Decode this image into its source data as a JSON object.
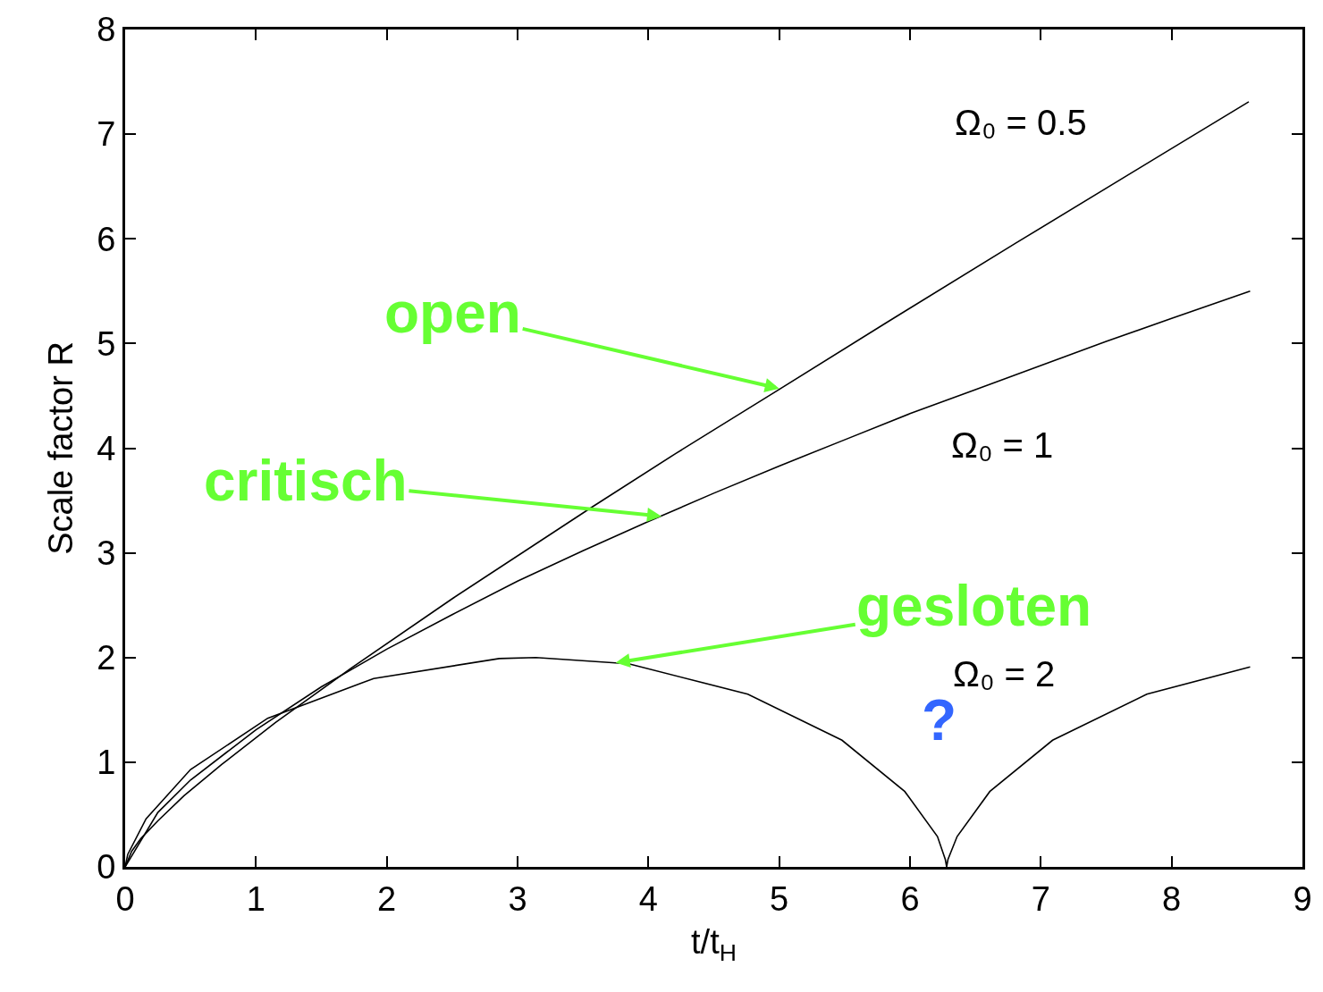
{
  "chart_data": {
    "type": "line",
    "xlabel": "t/t$_{H}$",
    "ylabel": "Scale factor R",
    "xlim": [
      0,
      9
    ],
    "ylim": [
      0,
      8
    ],
    "xticks": [
      0,
      1,
      2,
      3,
      4,
      5,
      6,
      7,
      8,
      9
    ],
    "yticks": [
      0,
      1,
      2,
      3,
      4,
      5,
      6,
      7,
      8
    ],
    "legend": false,
    "marker": "none",
    "line_style": "solid",
    "series": [
      {
        "name": "Ω₀ = 0.5",
        "color": "#000000",
        "x": [
          0,
          0.05,
          0.12,
          0.25,
          0.45,
          0.74,
          1.15,
          1.73,
          2.51,
          3.56,
          4.21,
          4.96,
          5.82,
          6.81,
          7.93,
          8.59
        ],
        "values": [
          0,
          0.15,
          0.27,
          0.44,
          0.68,
          0.98,
          1.38,
          1.9,
          2.57,
          3.43,
          3.95,
          4.53,
          5.2,
          5.96,
          6.81,
          7.31
        ]
      },
      {
        "name": "Ω₀ = 1",
        "color": "#000000",
        "x": [
          0,
          0.25,
          0.5,
          1,
          1.5,
          2,
          2.5,
          3,
          3.5,
          4,
          4.5,
          5,
          5.5,
          6,
          6.5,
          7,
          7.5,
          8,
          8.6
        ],
        "values": [
          0,
          0.52,
          0.83,
          1.31,
          1.72,
          2.08,
          2.41,
          2.73,
          3.02,
          3.3,
          3.57,
          3.83,
          4.08,
          4.33,
          4.56,
          4.79,
          5.02,
          5.24,
          5.5
        ]
      },
      {
        "name": "Ω₀ = 2",
        "color": "#000000",
        "x": [
          0,
          0.02,
          0.16,
          0.5,
          1.09,
          1.9,
          2.86,
          3.14,
          3.85,
          4.76,
          5.48,
          5.96,
          6.21,
          6.27,
          6.28,
          6.29,
          6.36,
          6.61,
          7.09,
          7.81,
          8.6
        ],
        "values": [
          0,
          0.12,
          0.46,
          0.93,
          1.42,
          1.8,
          1.99,
          2,
          1.94,
          1.65,
          1.21,
          0.72,
          0.29,
          0.07,
          0,
          0.07,
          0.29,
          0.72,
          1.21,
          1.65,
          1.91
        ]
      }
    ],
    "annotations": [
      {
        "text": "open",
        "x": 5.0,
        "y": 4.57
      },
      {
        "text": "critisch",
        "x": 4.1,
        "y": 3.35
      },
      {
        "text": "gesloten",
        "x": 3.75,
        "y": 1.95
      },
      "?"
    ]
  }
}
